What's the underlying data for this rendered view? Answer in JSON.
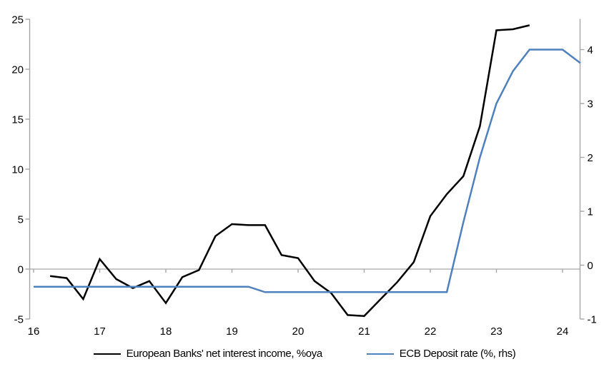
{
  "chart_data": {
    "type": "line",
    "title": "",
    "legend_position": "bottom",
    "grid": "zero-line-only",
    "x_axis": {
      "ticks": [
        "16",
        "17",
        "18",
        "19",
        "20",
        "21",
        "22",
        "23",
        "24"
      ],
      "tick_values": [
        16,
        17,
        18,
        19,
        20,
        21,
        22,
        23,
        24
      ],
      "min": 16,
      "max": 24.27
    },
    "left_axis": {
      "ticks": [
        "25",
        "20",
        "15",
        "10",
        "5",
        "0",
        "-5"
      ],
      "tick_values": [
        25,
        20,
        15,
        10,
        5,
        0,
        -5
      ],
      "min": -5,
      "max": 25
    },
    "right_axis": {
      "ticks": [
        "4",
        "3",
        "2",
        "1",
        "0",
        "-1"
      ],
      "tick_values": [
        4,
        3,
        2,
        1,
        0,
        -1
      ],
      "min": -1.05,
      "max": 4.55
    },
    "series": [
      {
        "name": "European Banks' net interest income, %oya",
        "axis": "left",
        "color": "#000000",
        "points": [
          [
            16.25,
            -0.7
          ],
          [
            16.5,
            -0.9
          ],
          [
            16.75,
            -3.0
          ],
          [
            17.0,
            1.0
          ],
          [
            17.25,
            -1.0
          ],
          [
            17.5,
            -1.9
          ],
          [
            17.75,
            -1.2
          ],
          [
            18.0,
            -3.4
          ],
          [
            18.25,
            -0.8
          ],
          [
            18.5,
            -0.1
          ],
          [
            18.75,
            3.3
          ],
          [
            19.0,
            4.5
          ],
          [
            19.25,
            4.4
          ],
          [
            19.5,
            4.4
          ],
          [
            19.75,
            1.4
          ],
          [
            20.0,
            1.1
          ],
          [
            20.25,
            -1.2
          ],
          [
            20.5,
            -2.4
          ],
          [
            20.75,
            -4.6
          ],
          [
            21.0,
            -4.7
          ],
          [
            21.25,
            -3.0
          ],
          [
            21.5,
            -1.3
          ],
          [
            21.75,
            0.7
          ],
          [
            22.0,
            5.3
          ],
          [
            22.25,
            7.5
          ],
          [
            22.5,
            9.3
          ],
          [
            22.75,
            14.3
          ],
          [
            23.0,
            23.9
          ],
          [
            23.25,
            24.0
          ],
          [
            23.5,
            24.4
          ]
        ]
      },
      {
        "name": "ECB Deposit rate (%, rhs)",
        "axis": "right",
        "color": "#4f81bd",
        "points": [
          [
            16.0,
            -0.4
          ],
          [
            19.25,
            -0.4
          ],
          [
            19.5,
            -0.5
          ],
          [
            22.25,
            -0.5
          ],
          [
            22.5,
            0.8
          ],
          [
            22.75,
            2.0
          ],
          [
            23.0,
            3.0
          ],
          [
            23.25,
            3.6
          ],
          [
            23.5,
            4.0
          ],
          [
            24.0,
            4.0
          ],
          [
            24.27,
            3.75
          ]
        ]
      }
    ],
    "colors": {
      "axis": "#a6a6a6",
      "text": "#000000",
      "background": "#ffffff"
    }
  }
}
